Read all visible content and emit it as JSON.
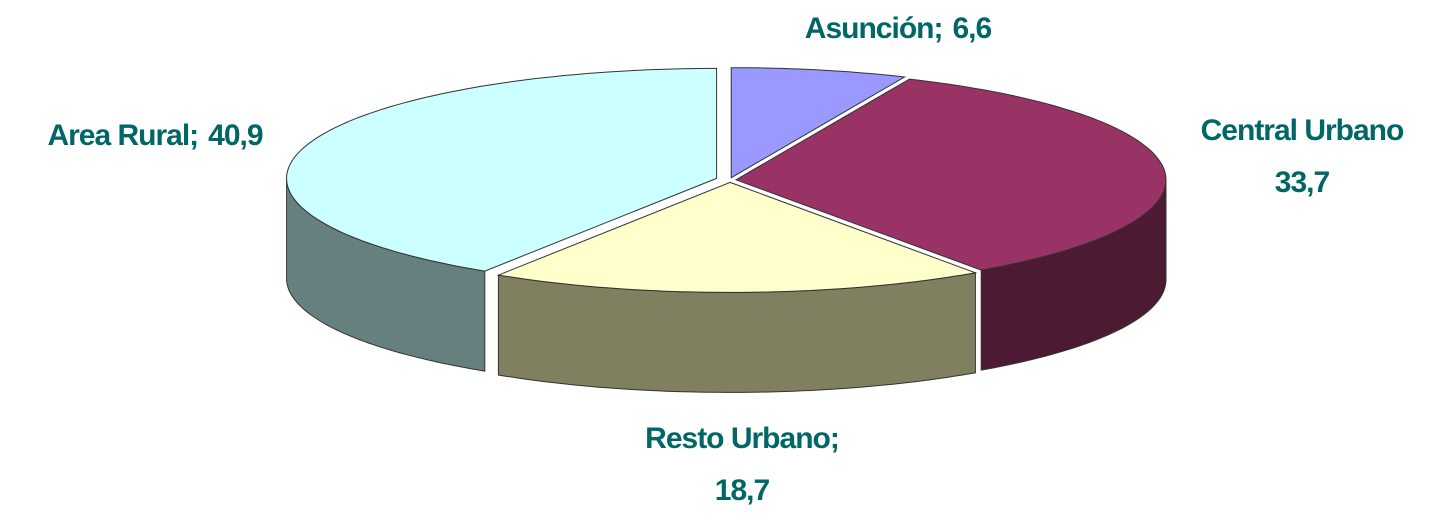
{
  "chart_data": {
    "type": "pie3d",
    "categories": [
      "Asunción;",
      "Central Urbano",
      "Resto Urbano;",
      "Area Rural;"
    ],
    "values": [
      6.6,
      33.7,
      18.7,
      40.9
    ],
    "value_labels": [
      "6,6",
      "33,7",
      "18,7",
      "40,9"
    ],
    "colors": [
      "#9999ff",
      "#993366",
      "#ffffcc",
      "#ccffff"
    ],
    "side_colors": [
      "#4d4d80",
      "#4d1a33",
      "#808060",
      "#668080"
    ]
  }
}
